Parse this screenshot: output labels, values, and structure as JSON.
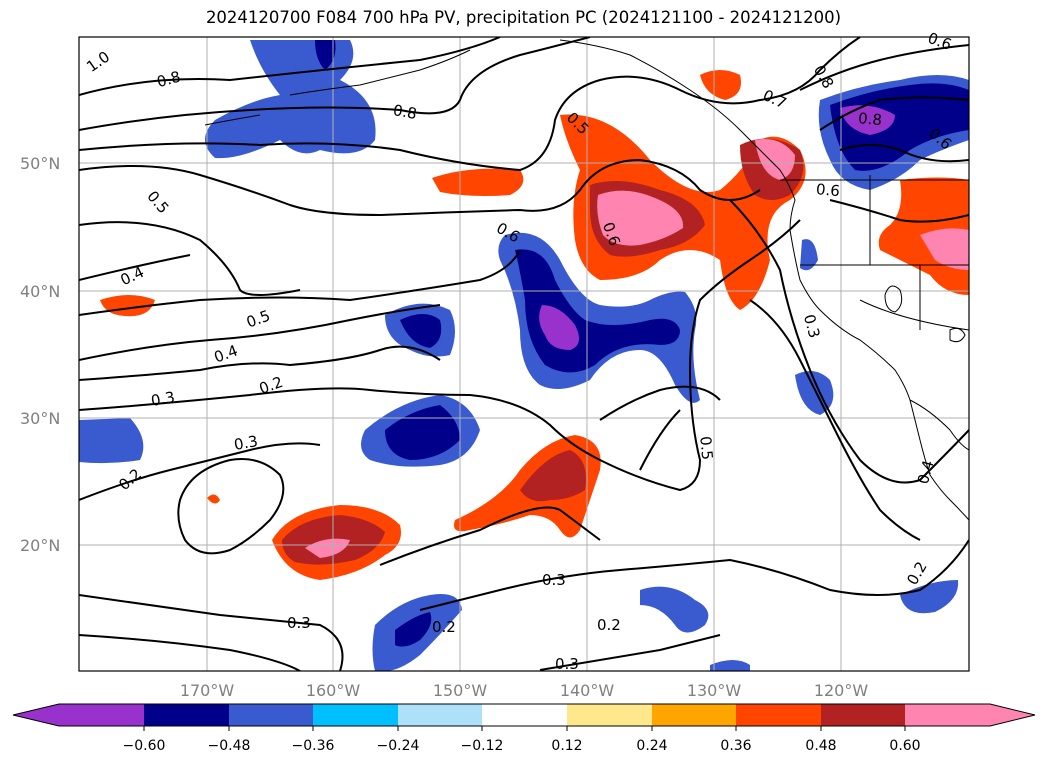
{
  "title": "2024120700 F084 700 hPa PV, precipitation PC (2024121100 - 2024121200)",
  "map": {
    "lat_labels": [
      "50°N",
      "40°N",
      "30°N",
      "20°N"
    ],
    "lon_labels": [
      "170°W",
      "160°W",
      "150°W",
      "140°W",
      "130°W",
      "120°W"
    ],
    "contour_labels": [
      "1.0",
      "0.8",
      "0.8",
      "0.8",
      "0.5",
      "0.6",
      "0.7",
      "0.8",
      "0.6",
      "0.6",
      "0.6",
      "0.5",
      "0.4",
      "0.5",
      "0.4",
      "0.2",
      "0.3",
      "0.3",
      "0.3",
      "0.5",
      "0.2",
      "0.3",
      "0.3",
      "0.2",
      "0.2",
      "0.3",
      "0.4",
      "0.2",
      "0.6"
    ]
  },
  "colorbar": {
    "ticks": [
      "−0.60",
      "−0.48",
      "−0.36",
      "−0.24",
      "−0.12",
      "0.12",
      "0.24",
      "0.36",
      "0.48",
      "0.60"
    ],
    "colors": [
      "#9932CC",
      "#00008B",
      "#3A5BCF",
      "#00BFFF",
      "#ADE1FA",
      "#FFFFFF",
      "#FFE88C",
      "#FFA500",
      "#FF4500",
      "#B22222",
      "#FF85B0",
      "#FF85B0"
    ]
  }
}
